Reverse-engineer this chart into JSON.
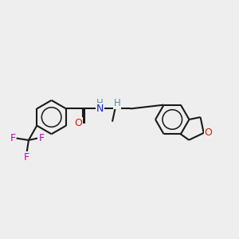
{
  "background_color": "#eeeeee",
  "bond_color": "#1a1a1a",
  "bond_width": 1.5,
  "atom_colors": {
    "N": "#2020cc",
    "O_carbonyl": "#cc2200",
    "O_ring": "#cc2200",
    "F": "#cc00cc",
    "H": "#4499aa"
  },
  "figsize": [
    3.0,
    3.0
  ],
  "dpi": 100,
  "xlim": [
    0,
    10
  ],
  "ylim": [
    1.5,
    8.5
  ]
}
